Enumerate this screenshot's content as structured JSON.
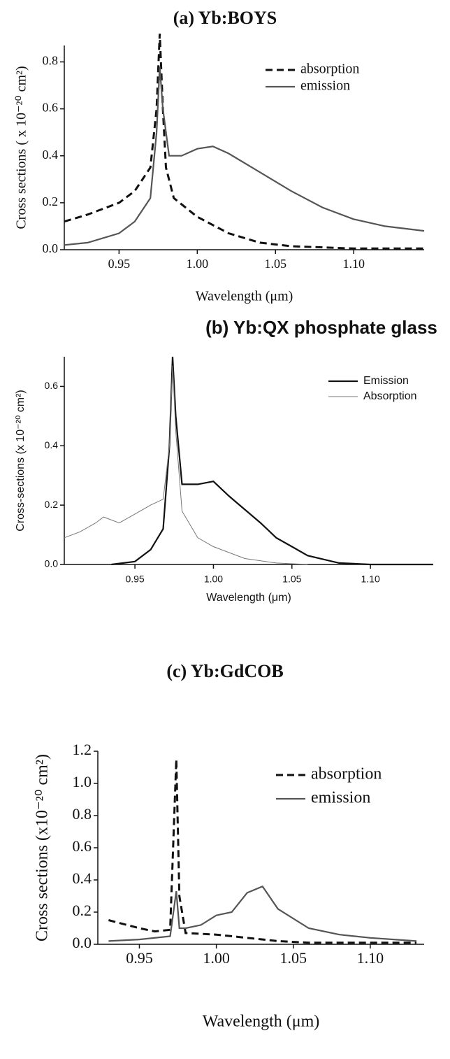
{
  "chart_data": [
    {
      "type": "line",
      "title": "(a) Yb:BOYS",
      "x_label": "Wavelength (μm)",
      "y_label": "Cross sections ( x 10⁻²⁰ cm²)",
      "xlim": [
        0.915,
        1.145
      ],
      "ylim": [
        0,
        0.87
      ],
      "xticks": [
        0.95,
        {
          "value": 1,
          "label": "1.00"
        },
        1.05,
        {
          "value": 1.1,
          "label": "1.10"
        }
      ],
      "yticks": [
        {
          "value": 0,
          "label": "0.0"
        },
        0.2,
        0.4,
        0.6,
        0.8
      ],
      "series": [
        {
          "name": "absorption",
          "color": "#111111",
          "style": "dashed",
          "x": [
            0.915,
            0.93,
            0.95,
            0.96,
            0.97,
            0.974,
            0.976,
            0.978,
            0.98,
            0.985,
            1.0,
            1.02,
            1.04,
            1.06,
            1.1,
            1.145
          ],
          "values": [
            0.12,
            0.15,
            0.2,
            0.25,
            0.35,
            0.6,
            0.92,
            0.6,
            0.35,
            0.22,
            0.14,
            0.07,
            0.03,
            0.015,
            0.005,
            0.005
          ]
        },
        {
          "name": "emission",
          "color": "#555555",
          "style": "solid",
          "x": [
            0.915,
            0.93,
            0.95,
            0.96,
            0.97,
            0.974,
            0.976,
            0.978,
            0.982,
            0.99,
            1.0,
            1.01,
            1.02,
            1.04,
            1.06,
            1.08,
            1.1,
            1.12,
            1.145
          ],
          "values": [
            0.02,
            0.03,
            0.07,
            0.12,
            0.22,
            0.5,
            0.78,
            0.6,
            0.4,
            0.4,
            0.43,
            0.44,
            0.41,
            0.33,
            0.25,
            0.18,
            0.13,
            0.1,
            0.08
          ]
        }
      ]
    },
    {
      "type": "line",
      "title": "(b) Yb:QX phosphate glass",
      "x_label": "Wavelength (μm)",
      "y_label": "Cross-sections (x 10⁻²⁰ cm²)",
      "xlim": [
        0.905,
        1.14
      ],
      "ylim": [
        0,
        0.7
      ],
      "xticks": [
        0.95,
        {
          "value": 1,
          "label": "1.00"
        },
        1.05,
        {
          "value": 1.1,
          "label": "1.10"
        }
      ],
      "yticks": [
        {
          "value": 0,
          "label": "0.0"
        },
        0.2,
        0.4,
        0.6
      ],
      "series": [
        {
          "name": "Emission",
          "color": "#111111",
          "style": "solid",
          "x": [
            0.935,
            0.95,
            0.96,
            0.968,
            0.972,
            0.974,
            0.976,
            0.98,
            0.99,
            1.0,
            1.01,
            1.03,
            1.04,
            1.05,
            1.06,
            1.08,
            1.1,
            1.14
          ],
          "values": [
            0,
            0.01,
            0.05,
            0.12,
            0.4,
            0.7,
            0.5,
            0.27,
            0.27,
            0.28,
            0.23,
            0.14,
            0.09,
            0.06,
            0.03,
            0.005,
            0,
            0
          ]
        },
        {
          "name": "Absorption",
          "color": "#777777",
          "style": "thin",
          "x": [
            0.905,
            0.915,
            0.925,
            0.93,
            0.94,
            0.95,
            0.96,
            0.968,
            0.972,
            0.974,
            0.976,
            0.98,
            0.99,
            1.0,
            1.02,
            1.04,
            1.06
          ],
          "values": [
            0.09,
            0.11,
            0.14,
            0.16,
            0.14,
            0.17,
            0.2,
            0.22,
            0.4,
            0.67,
            0.45,
            0.18,
            0.09,
            0.06,
            0.02,
            0.005,
            0
          ]
        }
      ]
    },
    {
      "type": "line",
      "title": "(c) Yb:GdCOB",
      "x_label": "Wavelength (μm)",
      "y_label": "Cross sections (x10⁻²⁰ cm²)",
      "xlim": [
        0.923,
        1.135
      ],
      "ylim": [
        0,
        1.2
      ],
      "xticks": [
        0.95,
        {
          "value": 1,
          "label": "1.00"
        },
        1.05,
        {
          "value": 1.1,
          "label": "1.10"
        }
      ],
      "yticks": [
        {
          "value": 0,
          "label": "0.0"
        },
        0.2,
        0.4,
        0.6,
        0.8,
        {
          "value": 1,
          "label": "1.0"
        },
        1.2
      ],
      "series": [
        {
          "name": "absorption",
          "color": "#111111",
          "style": "dashed",
          "x": [
            0.93,
            0.95,
            0.96,
            0.97,
            0.974,
            0.976,
            0.98,
            1.0,
            1.02,
            1.04,
            1.06,
            1.13
          ],
          "values": [
            0.15,
            0.1,
            0.08,
            0.09,
            1.15,
            0.3,
            0.07,
            0.06,
            0.04,
            0.02,
            0.01,
            0.01
          ]
        },
        {
          "name": "emission",
          "color": "#555555",
          "style": "solid",
          "x": [
            0.93,
            0.95,
            0.97,
            0.974,
            0.976,
            0.98,
            0.99,
            1.0,
            1.01,
            1.02,
            1.03,
            1.04,
            1.06,
            1.08,
            1.1,
            1.13
          ],
          "values": [
            0.02,
            0.03,
            0.05,
            0.33,
            0.1,
            0.1,
            0.12,
            0.18,
            0.2,
            0.32,
            0.36,
            0.22,
            0.1,
            0.06,
            0.04,
            0.02
          ]
        }
      ]
    }
  ]
}
